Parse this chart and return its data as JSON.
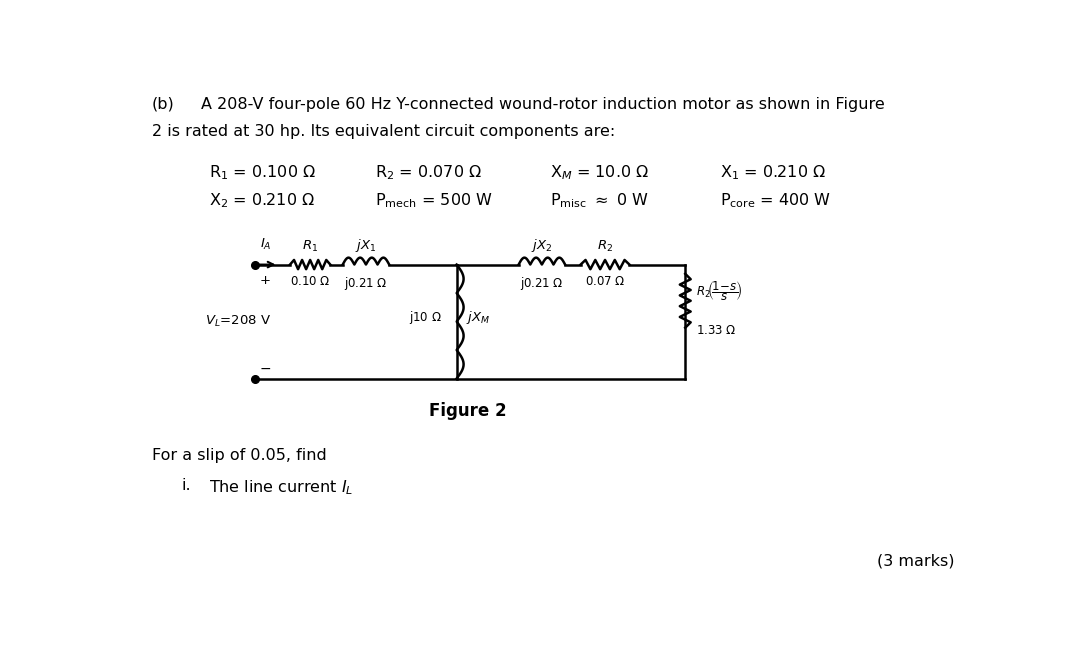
{
  "title_part_b": "(b)",
  "title_line1": "A 208-V four-pole 60 Hz Y-connected wound-rotor induction motor as shown in Figure",
  "title_line2": "2 is rated at 30 hp. Its equivalent circuit components are:",
  "figure_caption": "Figure 2",
  "question_text": "For a slip of 0.05, find",
  "question_item": "i.",
  "question_item2": "The line current",
  "marks_text": "(3 marks)",
  "bg_color": "#ffffff",
  "text_color": "#000000",
  "circuit_line_color": "#000000"
}
